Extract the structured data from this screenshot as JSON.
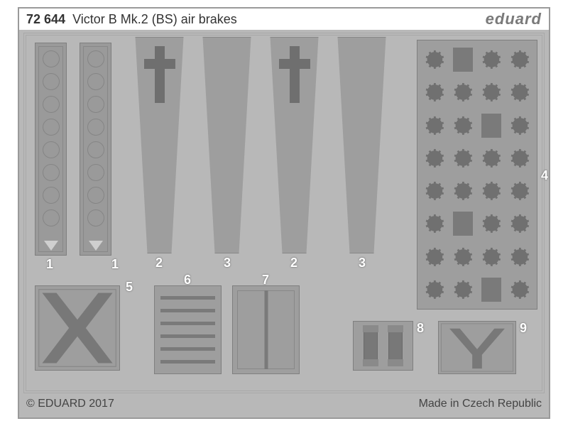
{
  "header": {
    "product_number": "72 644",
    "title": "Victor B Mk.2 (BS) air brakes",
    "brand": "eduard"
  },
  "footer": {
    "copyright": "© EDUARD 2017",
    "origin": "Made in Czech Republic"
  },
  "colors": {
    "sheet_bg": "#b8b8b8",
    "part_bg": "#9e9e9e",
    "part_dark": "#787878",
    "etch_line": "#888888",
    "label_text": "#ffffff"
  },
  "parts": {
    "1": {
      "label": "1",
      "count": 2,
      "feature_circles": 8
    },
    "2": {
      "label": "2",
      "count": 2,
      "has_top_T": true
    },
    "3": {
      "label": "3",
      "count": 2,
      "has_top_T": false
    },
    "4": {
      "label": "4",
      "grid_cols": 4,
      "grid_rows": 8,
      "gear_teeth": 10,
      "solid_squares": [
        1,
        10,
        21,
        30
      ]
    },
    "5": {
      "label": "5"
    },
    "6": {
      "label": "6",
      "horiz_bars": 6
    },
    "7": {
      "label": "7",
      "vert_bars": 1
    },
    "8": {
      "label": "8",
      "struts": 2
    },
    "9": {
      "label": "9"
    }
  }
}
